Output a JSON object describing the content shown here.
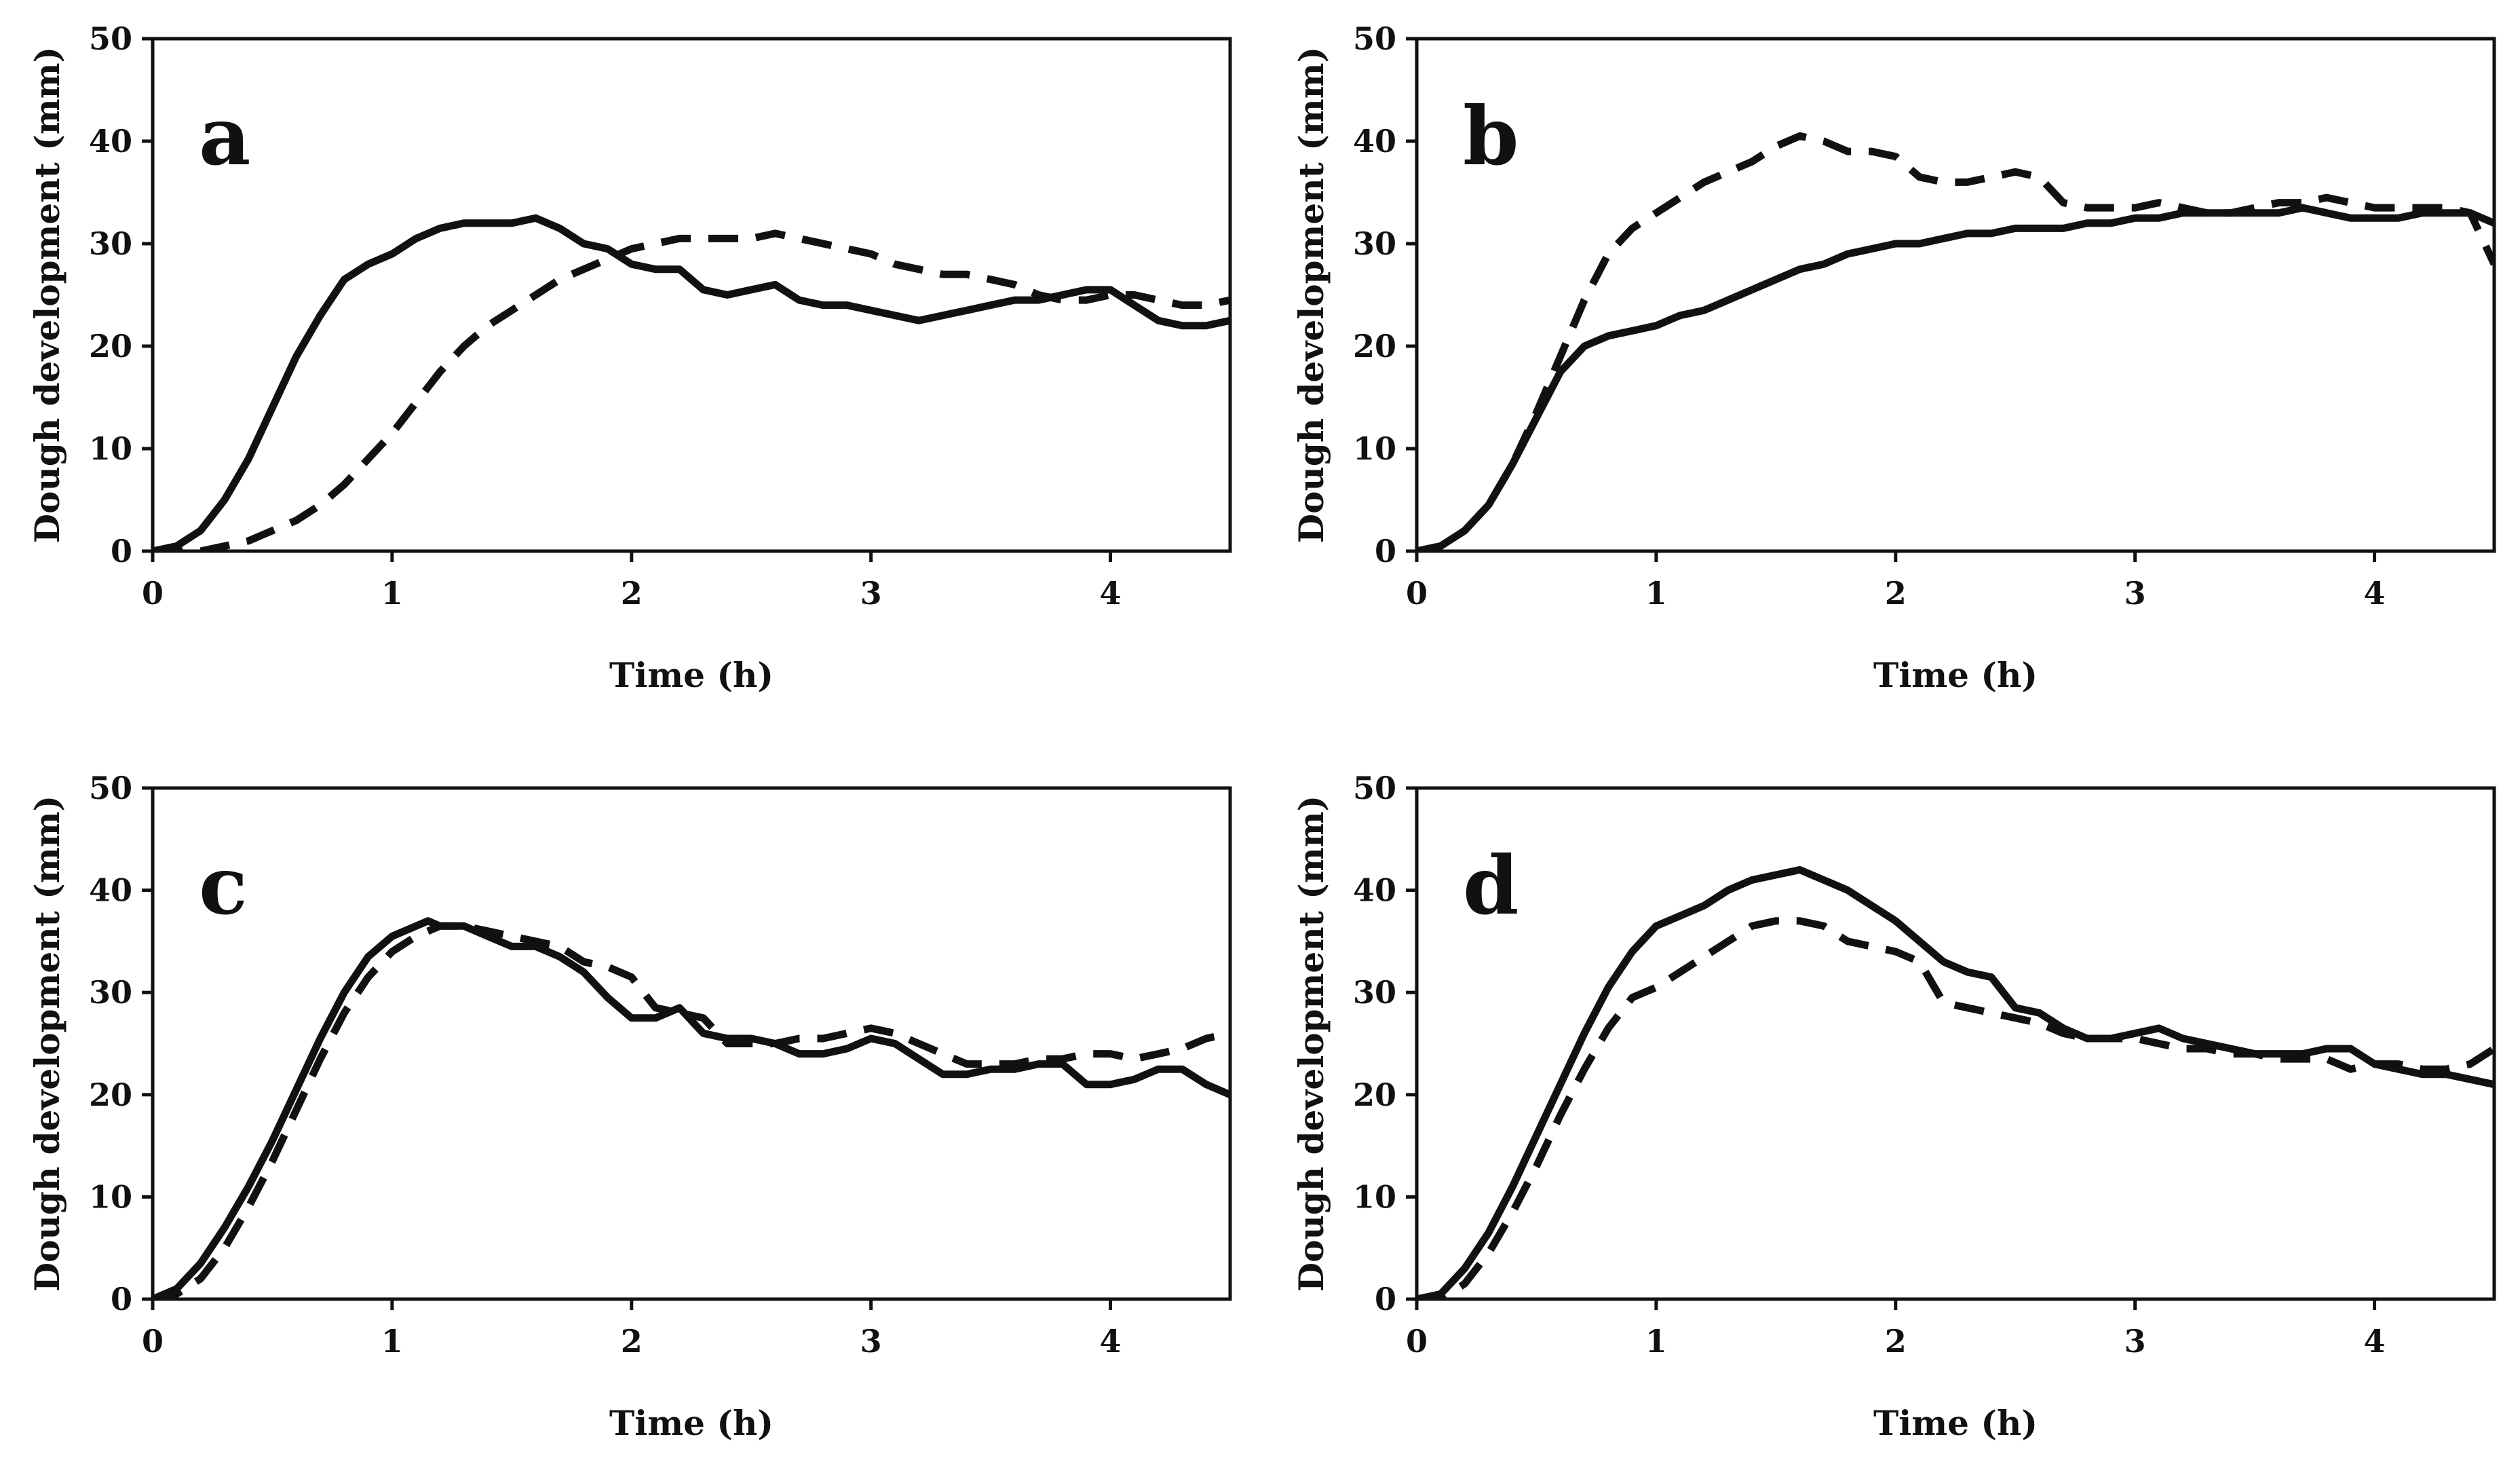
{
  "chart_data": [
    {
      "type": "line",
      "panel_label": "a",
      "xlabel": "Time (h)",
      "ylabel": "Dough development (mm)",
      "xlim": [
        0,
        4.5
      ],
      "ylim": [
        0,
        50
      ],
      "xticks": [
        "0",
        "1",
        "2",
        "3",
        "4"
      ],
      "yticks": [
        "0",
        "10",
        "20",
        "30",
        "40",
        "50"
      ],
      "series": [
        {
          "name": "solid",
          "style": "solid",
          "x": [
            0,
            0.1,
            0.2,
            0.3,
            0.4,
            0.5,
            0.6,
            0.7,
            0.8,
            0.9,
            1.0,
            1.1,
            1.2,
            1.3,
            1.4,
            1.5,
            1.6,
            1.7,
            1.8,
            1.9,
            2.0,
            2.1,
            2.2,
            2.3,
            2.4,
            2.5,
            2.6,
            2.7,
            2.8,
            2.9,
            3.0,
            3.1,
            3.2,
            3.3,
            3.4,
            3.5,
            3.6,
            3.7,
            3.8,
            3.9,
            4.0,
            4.1,
            4.2,
            4.3,
            4.4,
            4.5
          ],
          "y": [
            0,
            0.5,
            2,
            5,
            9,
            14,
            19,
            23,
            26.5,
            28,
            29,
            30.5,
            31.5,
            32,
            32,
            32,
            32.5,
            31.5,
            30,
            29.5,
            28,
            27.5,
            27.5,
            25.5,
            25,
            25.5,
            26,
            24.5,
            24,
            24,
            23.5,
            23,
            22.5,
            23,
            23.5,
            24,
            24.5,
            24.5,
            25,
            25.5,
            25.5,
            24,
            22.5,
            22,
            22,
            22.5
          ]
        },
        {
          "name": "dashed",
          "style": "dashed",
          "x": [
            0,
            0.2,
            0.3,
            0.4,
            0.5,
            0.6,
            0.7,
            0.8,
            0.9,
            1.0,
            1.1,
            1.2,
            1.3,
            1.4,
            1.5,
            1.6,
            1.7,
            1.8,
            1.9,
            2.0,
            2.1,
            2.2,
            2.3,
            2.4,
            2.5,
            2.6,
            2.7,
            2.8,
            2.9,
            3.0,
            3.1,
            3.2,
            3.3,
            3.4,
            3.5,
            3.6,
            3.7,
            3.8,
            3.9,
            4.0,
            4.1,
            4.2,
            4.3,
            4.4,
            4.5
          ],
          "y": [
            0,
            0,
            0.5,
            1,
            2,
            3,
            4.5,
            6.5,
            9,
            11.5,
            14.5,
            17.5,
            20,
            22,
            23.5,
            25,
            26.5,
            27.5,
            28.5,
            29.5,
            30,
            30.5,
            30.5,
            30.5,
            30.5,
            31,
            30.5,
            30,
            29.5,
            29,
            28,
            27.5,
            27,
            27,
            26.5,
            26,
            25,
            24.5,
            24.5,
            25,
            25,
            24.5,
            24,
            24,
            24.5
          ]
        }
      ]
    },
    {
      "type": "line",
      "panel_label": "b",
      "xlabel": "Time (h)",
      "ylabel": "Dough development (mm)",
      "xlim": [
        0,
        4.5
      ],
      "ylim": [
        0,
        50
      ],
      "xticks": [
        "0",
        "1",
        "2",
        "3",
        "4"
      ],
      "yticks": [
        "0",
        "10",
        "20",
        "30",
        "40",
        "50"
      ],
      "series": [
        {
          "name": "solid",
          "style": "solid",
          "x": [
            0,
            0.1,
            0.2,
            0.3,
            0.4,
            0.5,
            0.6,
            0.7,
            0.8,
            0.9,
            1.0,
            1.1,
            1.2,
            1.3,
            1.4,
            1.5,
            1.6,
            1.7,
            1.8,
            1.9,
            2.0,
            2.1,
            2.2,
            2.3,
            2.4,
            2.5,
            2.6,
            2.7,
            2.8,
            2.9,
            3.0,
            3.1,
            3.2,
            3.3,
            3.4,
            3.5,
            3.6,
            3.7,
            3.8,
            3.9,
            4.0,
            4.1,
            4.2,
            4.3,
            4.4,
            4.5
          ],
          "y": [
            0,
            0.5,
            2,
            4.5,
            8.5,
            13,
            17.5,
            20,
            21,
            21.5,
            22,
            23,
            23.5,
            24.5,
            25.5,
            26.5,
            27.5,
            28,
            29,
            29.5,
            30,
            30,
            30.5,
            31,
            31,
            31.5,
            31.5,
            31.5,
            32,
            32,
            32.5,
            32.5,
            33,
            33,
            33,
            33,
            33,
            33.5,
            33,
            32.5,
            32.5,
            32.5,
            33,
            33,
            33,
            32
          ]
        },
        {
          "name": "dashed",
          "style": "dashed",
          "x": [
            0,
            0.1,
            0.2,
            0.3,
            0.4,
            0.5,
            0.6,
            0.7,
            0.8,
            0.9,
            1.0,
            1.1,
            1.2,
            1.3,
            1.4,
            1.5,
            1.6,
            1.7,
            1.8,
            1.9,
            2.0,
            2.1,
            2.2,
            2.3,
            2.4,
            2.5,
            2.6,
            2.7,
            2.8,
            2.9,
            3.0,
            3.1,
            3.2,
            3.3,
            3.4,
            3.5,
            3.6,
            3.7,
            3.8,
            3.9,
            4.0,
            4.1,
            4.2,
            4.3,
            4.4,
            4.5
          ],
          "y": [
            0,
            0.5,
            2,
            4.5,
            8.5,
            13.5,
            19,
            24.5,
            29,
            31.5,
            33,
            34.5,
            36,
            37,
            38,
            39.5,
            40.5,
            40,
            39,
            39,
            38.5,
            36.5,
            36,
            36,
            36.5,
            37,
            36.5,
            34,
            33.5,
            33.5,
            33.5,
            34,
            33.5,
            33,
            33,
            33.5,
            34,
            34,
            34.5,
            34,
            33.5,
            33.5,
            33.5,
            33.5,
            33,
            28
          ]
        }
      ]
    },
    {
      "type": "line",
      "panel_label": "c",
      "xlabel": "Time (h)",
      "ylabel": "Dough development (mm)",
      "xlim": [
        0,
        4.5
      ],
      "ylim": [
        0,
        50
      ],
      "xticks": [
        "0",
        "1",
        "2",
        "3",
        "4"
      ],
      "yticks": [
        "0",
        "10",
        "20",
        "30",
        "40",
        "50"
      ],
      "series": [
        {
          "name": "solid",
          "style": "solid",
          "x": [
            0,
            0.1,
            0.2,
            0.3,
            0.4,
            0.5,
            0.6,
            0.7,
            0.8,
            0.9,
            1.0,
            1.1,
            1.15,
            1.2,
            1.3,
            1.4,
            1.5,
            1.6,
            1.7,
            1.8,
            1.9,
            2.0,
            2.1,
            2.2,
            2.3,
            2.4,
            2.5,
            2.6,
            2.7,
            2.8,
            2.9,
            3.0,
            3.1,
            3.2,
            3.3,
            3.4,
            3.5,
            3.6,
            3.7,
            3.8,
            3.9,
            4.0,
            4.1,
            4.2,
            4.3,
            4.4,
            4.5
          ],
          "y": [
            0,
            1,
            3.5,
            7,
            11,
            15.5,
            20.5,
            25.5,
            30,
            33.5,
            35.5,
            36.5,
            37,
            36.5,
            36.5,
            35.5,
            34.5,
            34.5,
            33.5,
            32,
            29.5,
            27.5,
            27.5,
            28.5,
            26,
            25.5,
            25.5,
            25,
            24,
            24,
            24.5,
            25.5,
            25,
            23.5,
            22,
            22,
            22.5,
            22.5,
            23,
            23,
            21,
            21,
            21.5,
            22.5,
            22.5,
            21,
            20
          ]
        },
        {
          "name": "dashed",
          "style": "dashed",
          "x": [
            0,
            0.1,
            0.2,
            0.3,
            0.4,
            0.5,
            0.6,
            0.7,
            0.8,
            0.9,
            1.0,
            1.1,
            1.2,
            1.3,
            1.4,
            1.5,
            1.6,
            1.7,
            1.8,
            1.9,
            2.0,
            2.1,
            2.2,
            2.3,
            2.4,
            2.5,
            2.6,
            2.7,
            2.8,
            2.9,
            3.0,
            3.1,
            3.2,
            3.3,
            3.4,
            3.5,
            3.6,
            3.7,
            3.8,
            3.9,
            4.0,
            4.1,
            4.2,
            4.3,
            4.4,
            4.5
          ],
          "y": [
            0,
            0.5,
            2,
            5,
            9,
            13.5,
            18.5,
            23.5,
            28,
            31.5,
            34,
            35.5,
            36.5,
            36.5,
            36,
            35.5,
            35,
            34.5,
            33,
            32.5,
            31.5,
            28.5,
            28,
            27.5,
            25,
            25,
            25,
            25.5,
            25.5,
            26,
            26.5,
            26,
            25,
            24,
            23,
            23,
            23,
            23.5,
            23.5,
            24,
            24,
            23.5,
            24,
            24.5,
            25.5,
            26
          ]
        }
      ]
    },
    {
      "type": "line",
      "panel_label": "d",
      "xlabel": "Time (h)",
      "ylabel": "Dough development (mm)",
      "xlim": [
        0,
        4.5
      ],
      "ylim": [
        0,
        50
      ],
      "xticks": [
        "0",
        "1",
        "2",
        "3",
        "4"
      ],
      "yticks": [
        "0",
        "10",
        "20",
        "30",
        "40",
        "50"
      ],
      "series": [
        {
          "name": "solid",
          "style": "solid",
          "x": [
            0,
            0.1,
            0.2,
            0.3,
            0.4,
            0.5,
            0.6,
            0.7,
            0.8,
            0.9,
            1.0,
            1.1,
            1.2,
            1.3,
            1.4,
            1.5,
            1.6,
            1.7,
            1.8,
            1.9,
            2.0,
            2.1,
            2.2,
            2.3,
            2.4,
            2.5,
            2.6,
            2.7,
            2.8,
            2.9,
            3.0,
            3.1,
            3.2,
            3.3,
            3.4,
            3.5,
            3.6,
            3.7,
            3.8,
            3.9,
            4.0,
            4.1,
            4.2,
            4.3,
            4.4,
            4.5
          ],
          "y": [
            0,
            0.5,
            3,
            6.5,
            11,
            16,
            21,
            26,
            30.5,
            34,
            36.5,
            37.5,
            38.5,
            40,
            41,
            41.5,
            42,
            41,
            40,
            38.5,
            37,
            35,
            33,
            32,
            31.5,
            28.5,
            28,
            26.5,
            25.5,
            25.5,
            26,
            26.5,
            25.5,
            25,
            24.5,
            24,
            24,
            24,
            24.5,
            24.5,
            23,
            22.5,
            22,
            22,
            21.5,
            21
          ]
        },
        {
          "name": "dashed",
          "style": "dashed",
          "x": [
            0,
            0.1,
            0.2,
            0.3,
            0.4,
            0.5,
            0.6,
            0.7,
            0.8,
            0.9,
            1.0,
            1.1,
            1.2,
            1.3,
            1.4,
            1.5,
            1.6,
            1.7,
            1.8,
            1.9,
            2.0,
            2.1,
            2.2,
            2.3,
            2.4,
            2.5,
            2.6,
            2.7,
            2.8,
            2.9,
            3.0,
            3.1,
            3.2,
            3.3,
            3.4,
            3.5,
            3.6,
            3.7,
            3.8,
            3.9,
            4.0,
            4.1,
            4.2,
            4.3,
            4.4,
            4.5
          ],
          "y": [
            0,
            0,
            1.5,
            4.5,
            8.5,
            13,
            18,
            22.5,
            26.5,
            29.5,
            30.5,
            32,
            33.5,
            35,
            36.5,
            37,
            37,
            36.5,
            35,
            34.5,
            34,
            33,
            29,
            28.5,
            28,
            27.5,
            27,
            26,
            25.5,
            25.5,
            25.5,
            25,
            24.5,
            24.5,
            24,
            24,
            23.5,
            23.5,
            23.5,
            22.5,
            23,
            23,
            22.5,
            22.5,
            23,
            24.5
          ]
        }
      ]
    }
  ]
}
